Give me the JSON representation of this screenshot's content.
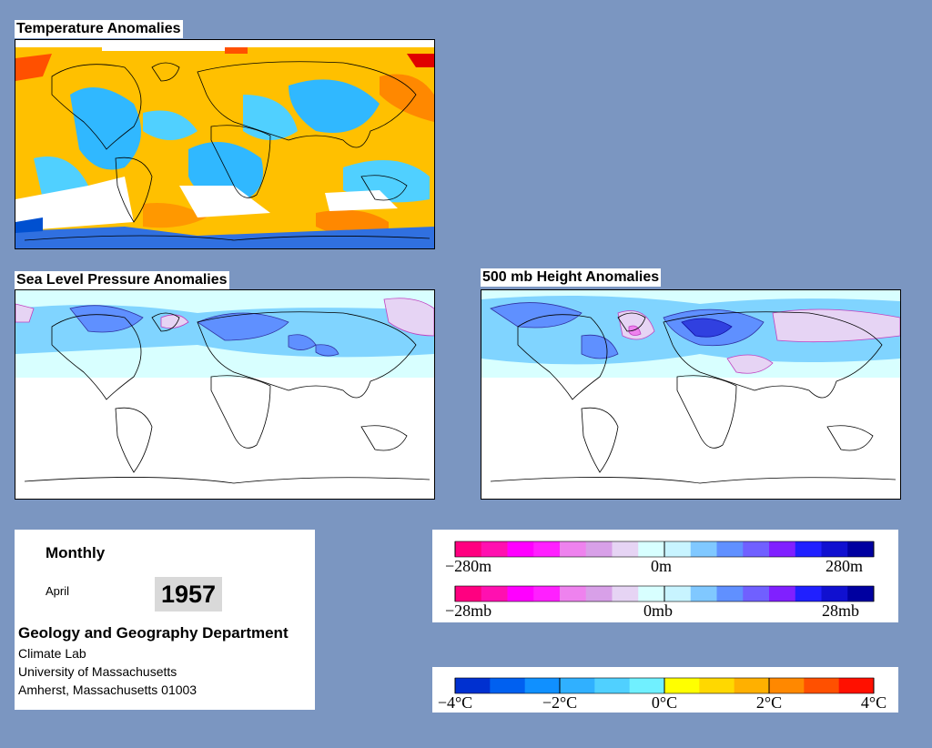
{
  "panels": {
    "temperature": {
      "title": "Temperature Anomalies"
    },
    "slp": {
      "title": "Sea Level Pressure Anomalies"
    },
    "height500": {
      "title": "500 mb Height Anomalies"
    }
  },
  "info": {
    "period": "Monthly",
    "month": "April",
    "year": "1957",
    "department": "Geology and Geography Department",
    "lab": "Climate Lab",
    "university": "University of Massachusetts",
    "address": "Amherst, Massachusetts 01003"
  },
  "legends": {
    "height": {
      "min": "−280m",
      "mid": "0m",
      "max": "280m"
    },
    "pressure": {
      "min": "−28mb",
      "mid": "0mb",
      "max": "28mb"
    },
    "temperature": {
      "labels": [
        "−4°C",
        "−2°C",
        "0°C",
        "2°C",
        "4°C"
      ]
    }
  },
  "colors": {
    "background": "#7b96c1",
    "anomaly_scale_purple": [
      "#ff0080",
      "#ff10b0",
      "#ff00ff",
      "#ff20ff",
      "#ee82ee",
      "#d8a0e8",
      "#e6d4f4",
      "#d8ffff",
      "#c8f4ff",
      "#80c8ff",
      "#6090ff",
      "#7060ff",
      "#8020ff",
      "#2020ff",
      "#1010d0",
      "#0000a0"
    ],
    "temperature_scale": [
      "#0030d0",
      "#0060f0",
      "#1090ff",
      "#30b0ff",
      "#50d0ff",
      "#70f0ff",
      "#ffff00",
      "#ffd800",
      "#ffb000",
      "#ff8800",
      "#ff5000",
      "#ff1000"
    ]
  }
}
